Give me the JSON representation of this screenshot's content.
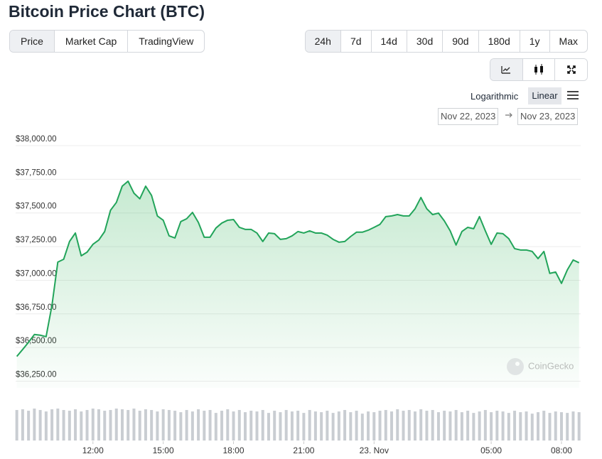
{
  "header": {
    "title": "Bitcoin Price Chart (BTC)"
  },
  "tabs": [
    "Price",
    "Market Cap",
    "TradingView"
  ],
  "ranges": [
    "24h",
    "7d",
    "14d",
    "30d",
    "90d",
    "180d",
    "1y",
    "Max"
  ],
  "scale_options": [
    "Logarithmic",
    "Linear"
  ],
  "date_range": {
    "from": "Nov 22, 2023",
    "to": "Nov 23, 2023"
  },
  "watermark": "CoinGecko",
  "chart_data": {
    "type": "area",
    "color": "#22a45a",
    "volume_color": "#c9cdd2",
    "grid": true,
    "xlim": [
      8.7,
      32.82
    ],
    "xticks": [
      {
        "value": 12,
        "label": "12:00"
      },
      {
        "value": 15,
        "label": "15:00"
      },
      {
        "value": 18,
        "label": "18:00"
      },
      {
        "value": 21,
        "label": "21:00"
      },
      {
        "value": 24,
        "label": "23. Nov"
      },
      {
        "value": 29,
        "label": "05:00"
      },
      {
        "value": 32,
        "label": "08:00"
      }
    ],
    "ylim": [
      36200,
      38000
    ],
    "yticks": [
      {
        "value": 36250,
        "label": "$36,250.00"
      },
      {
        "value": 36500,
        "label": "$36,500.00"
      },
      {
        "value": 36750,
        "label": "$36,750.00"
      },
      {
        "value": 37000,
        "label": "$37,000.00"
      },
      {
        "value": 37250,
        "label": "$37,250.00"
      },
      {
        "value": 37500,
        "label": "$37,500.00"
      },
      {
        "value": 37750,
        "label": "$37,750.00"
      },
      {
        "value": 38000,
        "label": "$38,000.00"
      }
    ],
    "x": [
      8.75,
      9,
      9.25,
      9.5,
      9.75,
      10,
      10.25,
      10.5,
      10.75,
      11,
      11.25,
      11.5,
      11.75,
      12,
      12.25,
      12.5,
      12.75,
      13,
      13.25,
      13.5,
      13.75,
      14,
      14.25,
      14.5,
      14.75,
      15,
      15.25,
      15.5,
      15.75,
      16,
      16.25,
      16.5,
      16.75,
      17,
      17.25,
      17.5,
      17.75,
      18,
      18.25,
      18.5,
      18.75,
      19,
      19.25,
      19.5,
      19.75,
      20,
      20.25,
      20.5,
      20.75,
      21,
      21.25,
      21.5,
      21.75,
      22,
      22.25,
      22.5,
      22.75,
      23,
      23.25,
      23.5,
      23.75,
      24,
      24.25,
      24.5,
      24.75,
      25,
      25.25,
      25.5,
      25.75,
      26,
      26.25,
      26.5,
      26.75,
      27,
      27.25,
      27.5,
      27.75,
      28,
      28.25,
      28.5,
      28.75,
      29,
      29.25,
      29.5,
      29.75,
      30,
      30.25,
      30.5,
      30.75,
      31,
      31.25,
      31.5,
      31.75,
      32,
      32.25,
      32.5,
      32.75
    ],
    "values": [
      36434,
      36486,
      36539,
      36597,
      36592,
      36581,
      36813,
      37135,
      37156,
      37288,
      37351,
      37182,
      37209,
      37267,
      37299,
      37362,
      37520,
      37578,
      37699,
      37736,
      37647,
      37605,
      37699,
      37631,
      37478,
      37446,
      37330,
      37314,
      37436,
      37457,
      37504,
      37430,
      37320,
      37320,
      37388,
      37425,
      37446,
      37451,
      37393,
      37378,
      37378,
      37351,
      37288,
      37351,
      37346,
      37304,
      37309,
      37330,
      37362,
      37351,
      37367,
      37351,
      37351,
      37335,
      37304,
      37283,
      37288,
      37325,
      37357,
      37357,
      37372,
      37393,
      37415,
      37473,
      37478,
      37488,
      37478,
      37478,
      37531,
      37615,
      37531,
      37488,
      37499,
      37441,
      37367,
      37262,
      37362,
      37393,
      37383,
      37473,
      37367,
      37267,
      37351,
      37346,
      37309,
      37235,
      37225,
      37225,
      37214,
      37161,
      37214,
      37051,
      37061,
      36977,
      37077,
      37151,
      37130
    ],
    "volume": [
      42,
      43,
      41,
      44,
      42,
      40,
      43,
      44,
      42,
      41,
      43,
      40,
      42,
      44,
      43,
      41,
      42,
      44,
      43,
      42,
      44,
      41,
      43,
      42,
      40,
      43,
      42,
      41,
      39,
      42,
      40,
      43,
      41,
      42,
      38,
      41,
      43,
      40,
      42,
      39,
      41,
      40,
      42,
      38,
      41,
      39,
      42,
      40,
      41,
      38,
      42,
      40,
      39,
      41,
      38,
      40,
      42,
      39,
      41,
      37,
      40,
      39,
      41,
      42,
      40,
      43,
      41,
      42,
      40,
      43,
      41,
      42,
      39,
      41,
      40,
      42,
      39,
      41,
      38,
      40,
      42,
      39,
      41,
      40,
      38,
      41,
      39,
      40,
      37,
      39,
      41,
      38,
      40,
      39,
      38,
      40,
      39
    ]
  }
}
